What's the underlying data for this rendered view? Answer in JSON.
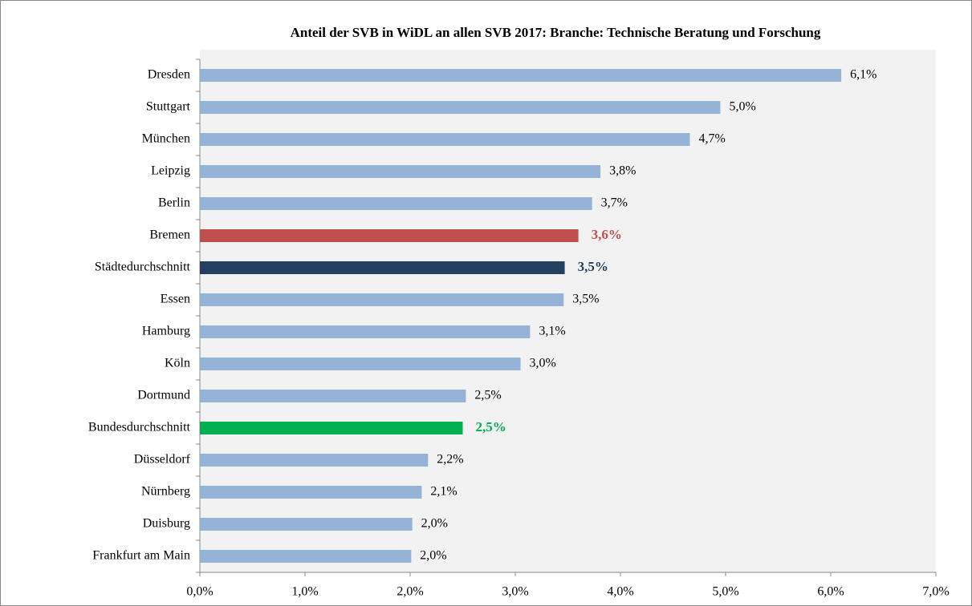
{
  "chart_data": {
    "type": "hbar",
    "title": "Anteil der SVB in WiDL an allen SVB 2017: Branche: Technische Beratung und Forschung",
    "categories": [
      "Dresden",
      "Stuttgart",
      "München",
      "Leipzig",
      "Berlin",
      "Bremen",
      "Städtedurchschnitt",
      "Essen",
      "Hamburg",
      "Köln",
      "Dortmund",
      "Bundesdurchschnitt",
      "Düsseldorf",
      "Nürnberg",
      "Duisburg",
      "Frankfurt am Main"
    ],
    "values": [
      6.1,
      4.95,
      4.66,
      3.81,
      3.73,
      3.6,
      3.47,
      3.46,
      3.14,
      3.05,
      2.53,
      2.5,
      2.17,
      2.11,
      2.02,
      2.01
    ],
    "value_labels": [
      "6,1%",
      "5,0%",
      "4,7%",
      "3,8%",
      "3,7%",
      "3,6%",
      "3,5%",
      "3,5%",
      "3,1%",
      "3,0%",
      "2,5%",
      "2,5%",
      "2,2%",
      "2,1%",
      "2,0%",
      "2,0%"
    ],
    "colors": [
      "#95b3d7",
      "#95b3d7",
      "#95b3d7",
      "#95b3d7",
      "#95b3d7",
      "#c0504d",
      "#243f60",
      "#95b3d7",
      "#95b3d7",
      "#95b3d7",
      "#95b3d7",
      "#00b050",
      "#95b3d7",
      "#95b3d7",
      "#95b3d7",
      "#95b3d7"
    ],
    "highlighted": [
      5,
      6,
      11
    ],
    "xlim": [
      0,
      7
    ],
    "xticks": [
      {
        "value": 0,
        "label": "0,0%"
      },
      {
        "value": 1,
        "label": "1,0%"
      },
      {
        "value": 2,
        "label": "2,0%"
      },
      {
        "value": 3,
        "label": "3,0%"
      },
      {
        "value": 4,
        "label": "4,0%"
      },
      {
        "value": 5,
        "label": "5,0%"
      },
      {
        "value": 6,
        "label": "6,0%"
      },
      {
        "value": 7,
        "label": "7,0%"
      }
    ]
  }
}
